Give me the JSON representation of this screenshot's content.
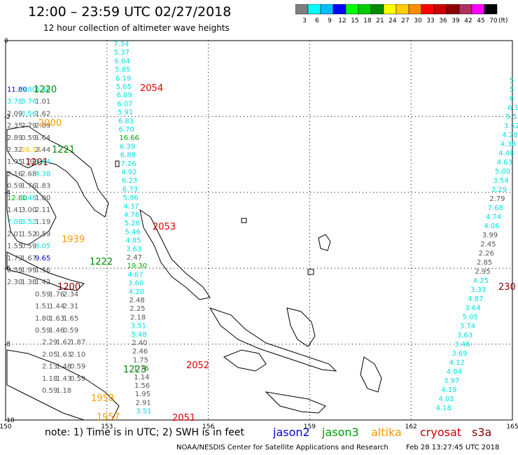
{
  "header": {
    "title": "12:00 – 23:59 UTC 02/27/2018",
    "subtitle": "12 hour collection of altimeter wave heights"
  },
  "colorbar": {
    "bins": [
      {
        "label": "3",
        "color": "#7f7f7f"
      },
      {
        "label": "6",
        "color": "#00ffff"
      },
      {
        "label": "9",
        "color": "#00bfff"
      },
      {
        "label": "12",
        "color": "#0000ff"
      },
      {
        "label": "15",
        "color": "#00ff00"
      },
      {
        "label": "18",
        "color": "#00cd00"
      },
      {
        "label": "21",
        "color": "#008b00"
      },
      {
        "label": "24",
        "color": "#ffff00"
      },
      {
        "label": "27",
        "color": "#ffcc00"
      },
      {
        "label": "30",
        "color": "#ff8c00"
      },
      {
        "label": "33",
        "color": "#ff0000"
      },
      {
        "label": "36",
        "color": "#cd0000"
      },
      {
        "label": "39",
        "color": "#8b0000"
      },
      {
        "label": "42",
        "color": "#b03060"
      },
      {
        "label": "45",
        "color": "#ff00ff"
      },
      {
        "label": "70",
        "color": "#000000"
      }
    ],
    "unit_label": "(ft)"
  },
  "axes": {
    "lon_ticks": [
      "150",
      "153",
      "156",
      "159",
      "162",
      "165"
    ],
    "lat_ticks": [
      "0",
      "-2",
      "-4",
      "-6",
      "-8",
      "-10"
    ]
  },
  "tracks": [
    {
      "values": [
        "7.34",
        "5.37",
        "6.04",
        "5.85",
        "6.19",
        "5.65",
        "6.09",
        "6.07",
        "5.91",
        "6.83",
        "6.70",
        "16.66",
        "6.39",
        "6.88",
        "7.26",
        "4.92",
        "6.23",
        "6.73",
        "5.96",
        "4.37",
        "4.76",
        "5.26",
        "5.46",
        "4.85",
        "3.63",
        "2.47",
        "19.30",
        "4.67",
        "3.60",
        "4.20",
        "2.48",
        "2.25",
        "2.18",
        "3.51",
        "5.48",
        "2.40",
        "2.46",
        "1.75",
        "1.76",
        "1.14",
        "1.56",
        "1.95",
        "2.91",
        "3.51"
      ],
      "colors": [
        "c",
        "c",
        "c",
        "c",
        "c",
        "c",
        "c",
        "c",
        "c",
        "c",
        "c",
        "g",
        "c",
        "c",
        "c",
        "c",
        "c",
        "c",
        "c",
        "c",
        "c",
        "c",
        "c",
        "c",
        "c",
        "k",
        "g",
        "c",
        "c",
        "c",
        "k",
        "k",
        "k",
        "c",
        "c",
        "k",
        "k",
        "k",
        "k",
        "k",
        "k",
        "k",
        "k",
        "c"
      ]
    },
    {
      "values": [
        "5",
        "5",
        "6",
        "6.1",
        "5.5",
        "3.52",
        "4.28",
        "4.38",
        "4.48",
        "4.63",
        "5.00",
        "3.54",
        "3.29",
        "2.79",
        "7.68",
        "4.74",
        "4.06",
        "3.99",
        "2.45",
        "2.26",
        "2.85",
        "2.95",
        "4.25",
        "3.33",
        "4.87",
        "3.64",
        "5.05",
        "3.74",
        "3.63",
        "3.46",
        "3.69",
        "4.12",
        "4.04",
        "3.97",
        "4.19",
        "4.03",
        "4.18"
      ],
      "colors": [
        "c",
        "c",
        "c",
        "c",
        "c",
        "c",
        "c",
        "c",
        "c",
        "c",
        "c",
        "c",
        "c",
        "k",
        "c",
        "c",
        "c",
        "k",
        "k",
        "k",
        "k",
        "k",
        "c",
        "c",
        "c",
        "c",
        "c",
        "c",
        "c",
        "c",
        "c",
        "c",
        "c",
        "c",
        "c",
        "c",
        "c"
      ]
    }
  ],
  "west_values": [
    {
      "t": "11.80",
      "c": "b"
    },
    {
      "t": "4.80",
      "c": "c"
    },
    {
      "t": "3.40",
      "c": "c"
    },
    {
      "t": "3.78",
      "c": "c"
    },
    {
      "t": "3.74",
      "c": "c"
    },
    {
      "t": "1.01",
      "c": "k"
    },
    {
      "t": "2.09",
      "c": "k"
    },
    {
      "t": "3.56",
      "c": "c"
    },
    {
      "t": "1.62",
      "c": "k"
    },
    {
      "t": "2.35",
      "c": "k"
    },
    {
      "t": "2.79",
      "c": "k"
    },
    {
      "t": "2.89",
      "c": "k"
    },
    {
      "t": "2.89",
      "c": "k"
    },
    {
      "t": "0.59",
      "c": "k"
    },
    {
      "t": "1.64",
      "c": "k"
    },
    {
      "t": "2.32",
      "c": "k"
    },
    {
      "t": "26.14",
      "c": "y"
    },
    {
      "t": "2.44",
      "c": "k"
    },
    {
      "t": "1.95",
      "c": "k"
    },
    {
      "t": "1.30",
      "c": "k"
    },
    {
      "t": "3.64",
      "c": "c"
    },
    {
      "t": "2.16",
      "c": "k"
    },
    {
      "t": "2.68",
      "c": "k"
    },
    {
      "t": "4.38",
      "c": "c"
    },
    {
      "t": "0.59",
      "c": "k"
    },
    {
      "t": "1.76",
      "c": "k"
    },
    {
      "t": "1.83",
      "c": "k"
    },
    {
      "t": "12.80",
      "c": "g"
    },
    {
      "t": "3.48",
      "c": "c"
    },
    {
      "t": "1.00",
      "c": "k"
    },
    {
      "t": "1.41",
      "c": "k"
    },
    {
      "t": "3.00",
      "c": "k"
    },
    {
      "t": "2.11",
      "c": "k"
    },
    {
      "t": "7.08",
      "c": "c"
    },
    {
      "t": "3.52",
      "c": "c"
    },
    {
      "t": "1.19",
      "c": "k"
    },
    {
      "t": "2.01",
      "c": "k"
    },
    {
      "t": "1.52",
      "c": "k"
    },
    {
      "t": "0.59",
      "c": "k"
    },
    {
      "t": "1.55",
      "c": "k"
    },
    {
      "t": "0.59",
      "c": "k"
    },
    {
      "t": "3.05",
      "c": "c"
    },
    {
      "t": "1.79",
      "c": "k"
    },
    {
      "t": "1.67",
      "c": "k"
    },
    {
      "t": "9.65",
      "c": "b"
    },
    {
      "t": "0.59",
      "c": "k"
    },
    {
      "t": "1.99",
      "c": "k"
    },
    {
      "t": "1.56",
      "c": "k"
    },
    {
      "t": "2.30",
      "c": "k"
    },
    {
      "t": "1.38",
      "c": "k"
    },
    {
      "t": "1.42",
      "c": "k"
    },
    {
      "t": "0.59",
      "c": "k"
    },
    {
      "t": "1.76",
      "c": "k"
    },
    {
      "t": "2.34",
      "c": "k"
    },
    {
      "t": "1.51",
      "c": "k"
    },
    {
      "t": "1.44",
      "c": "k"
    },
    {
      "t": "2.31",
      "c": "k"
    },
    {
      "t": "1.80",
      "c": "k"
    },
    {
      "t": "1.63",
      "c": "k"
    },
    {
      "t": "1.65",
      "c": "k"
    },
    {
      "t": "0.59",
      "c": "k"
    },
    {
      "t": "1.46",
      "c": "k"
    },
    {
      "t": "0.59",
      "c": "k"
    },
    {
      "t": "2.29",
      "c": "k"
    },
    {
      "t": "1.62",
      "c": "k"
    },
    {
      "t": "1.87",
      "c": "k"
    },
    {
      "t": "2.05",
      "c": "k"
    },
    {
      "t": "1.63",
      "c": "k"
    },
    {
      "t": "2.10",
      "c": "k"
    },
    {
      "t": "2.13",
      "c": "k"
    },
    {
      "t": "1.48",
      "c": "k"
    },
    {
      "t": "0.59",
      "c": "k"
    },
    {
      "t": "1.18",
      "c": "k"
    },
    {
      "t": "1.43",
      "c": "k"
    },
    {
      "t": "0.59",
      "c": "k"
    },
    {
      "t": "0.59",
      "c": "k"
    },
    {
      "t": "1.18",
      "c": "k"
    }
  ],
  "time_labels": [
    {
      "t": "1220",
      "c": "green"
    },
    {
      "t": "2000",
      "c": "orange"
    },
    {
      "t": "1221",
      "c": "green"
    },
    {
      "t": "1201",
      "c": "darkred"
    },
    {
      "t": "1939",
      "c": "orange"
    },
    {
      "t": "1222",
      "c": "green"
    },
    {
      "t": "1200",
      "c": "darkred"
    },
    {
      "t": "1958",
      "c": "orange"
    },
    {
      "t": "1957",
      "c": "orange"
    },
    {
      "t": "1223",
      "c": "green"
    },
    {
      "t": "2054",
      "c": "red"
    },
    {
      "t": "2053",
      "c": "red"
    },
    {
      "t": "2052",
      "c": "red"
    },
    {
      "t": "2051",
      "c": "red"
    },
    {
      "t": "230",
      "c": "darkred"
    }
  ],
  "note": "note:  1) Time is in UTC;  2) SWH is in feet",
  "legend": [
    {
      "label": "jason2",
      "color": "#0000cc"
    },
    {
      "label": "jason3",
      "color": "#009900"
    },
    {
      "label": "altika",
      "color": "#ff9900"
    },
    {
      "label": "cryosat",
      "color": "#cc0000"
    },
    {
      "label": "s3a",
      "color": "#8b0000"
    }
  ],
  "footer": {
    "credit": "NOAA/NESDIS Center for Satellite Applications and Research",
    "timestamp": "Feb 28 13:27:45 UTC 2018"
  },
  "palette": {
    "c": "#00e0e0",
    "k": "#555555",
    "g": "#00aa00",
    "b": "#0000cc",
    "y": "#ffbb00",
    "green": "#008800",
    "orange": "#ff9900",
    "red": "#dd0000",
    "darkred": "#880000"
  }
}
